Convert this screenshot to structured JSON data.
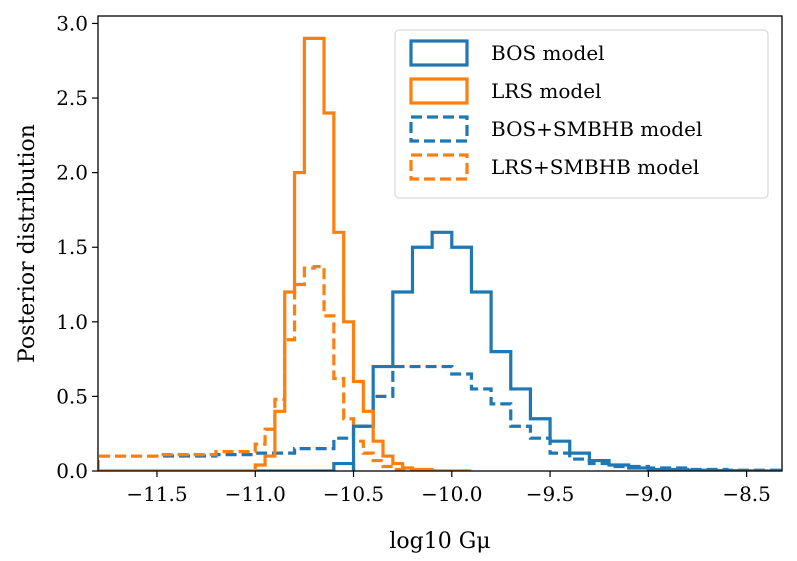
{
  "chart_data": {
    "type": "histogram",
    "xlabel": "log10 Gμ",
    "ylabel": "Posterior distribution",
    "xlim": [
      -11.8,
      -8.32
    ],
    "ylim": [
      0,
      3.05
    ],
    "xticks": [
      -11.5,
      -11.0,
      -10.5,
      -10.0,
      -9.5,
      -9.0,
      -8.5
    ],
    "xtick_labels": [
      "−11.5",
      "−11.0",
      "−10.5",
      "−10.0",
      "−9.5",
      "−9.0",
      "−8.5"
    ],
    "yticks": [
      0.0,
      0.5,
      1.0,
      1.5,
      2.0,
      2.5,
      3.0
    ],
    "ytick_labels": [
      "0.0",
      "0.5",
      "1.0",
      "1.5",
      "2.0",
      "2.5",
      "3.0"
    ],
    "legend_position": "top-right",
    "colors": {
      "blue": "#1f77b4",
      "orange": "#ff7f0e"
    },
    "series": [
      {
        "name": "BOS model",
        "color": "#1f77b4",
        "style": "solid",
        "bin_edges": [
          -10.5,
          -10.4,
          -10.3,
          -10.2,
          -10.1,
          -10.0,
          -9.9,
          -9.8,
          -9.7,
          -9.6,
          -9.5,
          -9.4,
          -9.3,
          -9.2,
          -9.1,
          -9.0,
          -8.9,
          -8.8,
          -8.7,
          -8.6,
          -8.5,
          -8.4,
          -8.32
        ],
        "values": [
          0.3,
          0.7,
          1.2,
          1.5,
          1.6,
          1.5,
          1.2,
          0.8,
          0.55,
          0.35,
          0.2,
          0.12,
          0.07,
          0.04,
          0.02,
          0.01,
          0.01,
          0.005,
          0.003,
          0.002,
          0.001,
          0.0
        ],
        "left_tail_edges": [
          -11.8,
          -10.6,
          -10.5
        ],
        "left_tail_values": [
          0.0,
          0.05
        ]
      },
      {
        "name": "LRS model",
        "color": "#ff7f0e",
        "style": "solid",
        "bin_edges": [
          -11.8,
          -11.0,
          -10.95,
          -10.9,
          -10.85,
          -10.8,
          -10.75,
          -10.7,
          -10.65,
          -10.6,
          -10.55,
          -10.5,
          -10.45,
          -10.4,
          -10.35,
          -10.3,
          -10.25,
          -10.2,
          -10.1,
          -9.9
        ],
        "values": [
          0.0,
          0.04,
          0.1,
          0.4,
          1.2,
          2.0,
          2.9,
          2.9,
          2.4,
          1.6,
          1.0,
          0.6,
          0.4,
          0.2,
          0.1,
          0.05,
          0.02,
          0.01,
          0.0
        ]
      },
      {
        "name": "BOS+SMBHB model",
        "color": "#1f77b4",
        "style": "dashed",
        "bin_edges": [
          -11.8,
          -11.5,
          -11.2,
          -11.0,
          -10.8,
          -10.6,
          -10.5,
          -10.4,
          -10.3,
          -10.2,
          -10.1,
          -10.0,
          -9.9,
          -9.8,
          -9.7,
          -9.6,
          -9.5,
          -9.4,
          -9.3,
          -9.2,
          -9.0,
          -8.8,
          -8.6,
          -8.32
        ],
        "values": [
          0.1,
          0.1,
          0.11,
          0.12,
          0.15,
          0.22,
          0.3,
          0.5,
          0.7,
          0.7,
          0.7,
          0.65,
          0.55,
          0.45,
          0.3,
          0.22,
          0.12,
          0.08,
          0.05,
          0.03,
          0.02,
          0.01,
          0.005
        ]
      },
      {
        "name": "LRS+SMBHB model",
        "color": "#ff7f0e",
        "style": "dashed",
        "bin_edges": [
          -11.8,
          -11.5,
          -11.2,
          -11.0,
          -10.95,
          -10.9,
          -10.85,
          -10.8,
          -10.75,
          -10.7,
          -10.65,
          -10.6,
          -10.55,
          -10.5,
          -10.45,
          -10.4,
          -10.35,
          -10.3,
          -10.25,
          -10.2,
          -10.1,
          -9.9
        ],
        "values": [
          0.1,
          0.11,
          0.13,
          0.18,
          0.28,
          0.48,
          0.88,
          1.25,
          1.36,
          1.37,
          1.04,
          0.62,
          0.35,
          0.2,
          0.12,
          0.07,
          0.03,
          0.01,
          0.005,
          0.002,
          0.0
        ]
      }
    ]
  }
}
